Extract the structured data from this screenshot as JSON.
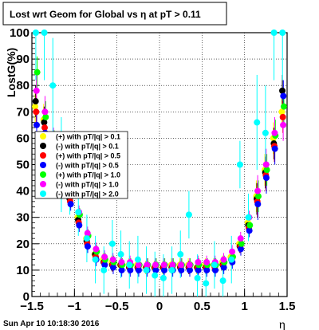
{
  "window": {
    "title": "Lost wrt Geom for Global vs   η at pT > 0.11",
    "footer_timestamp": "Sun Apr 10 10:18:30 2016"
  },
  "chart_data": {
    "type": "scatter",
    "title": "Lost wrt Geom for Global vs   η at pT > 0.11",
    "xlabel": "η",
    "ylabel": "LostG(%)",
    "xlim": [
      -1.5,
      1.5
    ],
    "ylim": [
      0,
      100
    ],
    "x_ticks": [
      "−1.5",
      "−1",
      "−0.5",
      "0",
      "0.5",
      "1",
      "1.5"
    ],
    "y_ticks": [
      "0",
      "10",
      "20",
      "30",
      "40",
      "50",
      "60",
      "70",
      "80",
      "90",
      "100"
    ],
    "grid": true,
    "legend_position": "middle-left",
    "series": [
      {
        "name": "(+) with pT/|q| > 0.1",
        "color": "#ffff00",
        "marker": "circle",
        "x": [
          -1.45,
          -1.35,
          -1.25,
          -1.15,
          -1.05,
          -0.95,
          -0.85,
          -0.75,
          -0.65,
          -0.55,
          -0.45,
          -0.35,
          -0.25,
          -0.15,
          -0.05,
          0.05,
          0.15,
          0.25,
          0.35,
          0.45,
          0.55,
          0.65,
          0.75,
          0.85,
          0.95,
          1.05,
          1.15,
          1.25,
          1.35,
          1.45
        ],
        "y": [
          72,
          67,
          55,
          47,
          38,
          30,
          22,
          16,
          14,
          13,
          12,
          12,
          12,
          11,
          11,
          11,
          12,
          12,
          12,
          11,
          12,
          12,
          13,
          15,
          20,
          28,
          38,
          48,
          60,
          70
        ]
      },
      {
        "name": "(-) with pT/|q| > 0.1",
        "color": "#000000",
        "marker": "circle",
        "x": [
          -1.45,
          -1.35,
          -1.25,
          -1.15,
          -1.05,
          -0.95,
          -0.85,
          -0.75,
          -0.65,
          -0.55,
          -0.45,
          -0.35,
          -0.25,
          -0.15,
          -0.05,
          0.05,
          0.15,
          0.25,
          0.35,
          0.45,
          0.55,
          0.65,
          0.75,
          0.85,
          0.95,
          1.05,
          1.15,
          1.25,
          1.35,
          1.45
        ],
        "y": [
          74,
          66,
          56,
          46,
          37,
          29,
          21,
          16,
          13,
          12,
          12,
          11,
          11,
          11,
          11,
          11,
          11,
          11,
          11,
          11,
          11,
          12,
          12,
          14,
          19,
          27,
          37,
          47,
          58,
          78
        ]
      },
      {
        "name": "(+) with pT/|q| > 0.5",
        "color": "#ff0000",
        "marker": "circle",
        "x": [
          -1.45,
          -1.35,
          -1.25,
          -1.15,
          -1.05,
          -0.95,
          -0.85,
          -0.75,
          -0.65,
          -0.55,
          -0.45,
          -0.35,
          -0.25,
          -0.15,
          -0.05,
          0.05,
          0.15,
          0.25,
          0.35,
          0.45,
          0.55,
          0.65,
          0.75,
          0.85,
          0.95,
          1.05,
          1.15,
          1.25,
          1.35,
          1.45
        ],
        "y": [
          70,
          64,
          54,
          45,
          36,
          28,
          20,
          15,
          13,
          12,
          12,
          11,
          11,
          11,
          11,
          11,
          11,
          11,
          11,
          11,
          11,
          11,
          12,
          14,
          19,
          26,
          36,
          46,
          57,
          68
        ]
      },
      {
        "name": "(-) with pT/|q| > 0.5",
        "color": "#0000ff",
        "marker": "circle",
        "x": [
          -1.45,
          -1.35,
          -1.25,
          -1.15,
          -1.05,
          -0.95,
          -0.85,
          -0.75,
          -0.65,
          -0.55,
          -0.45,
          -0.35,
          -0.25,
          -0.15,
          -0.05,
          0.05,
          0.15,
          0.25,
          0.35,
          0.45,
          0.55,
          0.65,
          0.75,
          0.85,
          0.95,
          1.05,
          1.15,
          1.25,
          1.35,
          1.45
        ],
        "y": [
          65,
          62,
          52,
          44,
          35,
          27,
          19,
          14,
          12,
          11,
          10,
          10,
          10,
          10,
          10,
          10,
          10,
          10,
          10,
          10,
          10,
          10,
          11,
          13,
          18,
          25,
          35,
          45,
          56,
          76
        ]
      },
      {
        "name": "(+) with pT/|q| > 1.0",
        "color": "#00ff00",
        "marker": "circle",
        "x": [
          -1.45,
          -1.35,
          -1.25,
          -1.15,
          -1.05,
          -0.95,
          -0.85,
          -0.75,
          -0.65,
          -0.55,
          -0.45,
          -0.35,
          -0.25,
          -0.15,
          -0.05,
          0.05,
          0.15,
          0.25,
          0.35,
          0.45,
          0.55,
          0.65,
          0.75,
          0.85,
          0.95,
          1.05,
          1.15,
          1.25,
          1.35,
          1.45
        ],
        "y": [
          85,
          68,
          57,
          48,
          39,
          31,
          23,
          17,
          14,
          13,
          12,
          12,
          12,
          12,
          12,
          12,
          12,
          12,
          12,
          12,
          12,
          12,
          13,
          15,
          20,
          27,
          38,
          48,
          61,
          72
        ]
      },
      {
        "name": "(-) with pT/|q| > 1.0",
        "color": "#ff00ff",
        "marker": "circle",
        "x": [
          -1.45,
          -1.35,
          -1.25,
          -1.15,
          -1.05,
          -0.95,
          -0.85,
          -0.75,
          -0.65,
          -0.55,
          -0.45,
          -0.35,
          -0.25,
          -0.15,
          -0.05,
          0.05,
          0.15,
          0.25,
          0.35,
          0.45,
          0.55,
          0.65,
          0.75,
          0.85,
          0.95,
          1.05,
          1.15,
          1.25,
          1.35,
          1.45
        ],
        "y": [
          78,
          70,
          58,
          49,
          40,
          32,
          24,
          18,
          15,
          14,
          13,
          13,
          12,
          12,
          12,
          12,
          12,
          12,
          12,
          13,
          13,
          13,
          14,
          17,
          22,
          30,
          40,
          50,
          62,
          65
        ]
      },
      {
        "name": "(-) with pT/|q| > 2.0",
        "color": "#00ffff",
        "marker": "circle",
        "x": [
          -1.45,
          -1.35,
          -1.25,
          -1.15,
          -1.05,
          -0.95,
          -0.85,
          -0.75,
          -0.65,
          -0.55,
          -0.45,
          -0.35,
          -0.25,
          -0.15,
          -0.05,
          0.05,
          0.15,
          0.25,
          0.35,
          0.45,
          0.55,
          0.65,
          0.75,
          0.85,
          0.95,
          1.05,
          1.15,
          1.25,
          1.35,
          1.45
        ],
        "y": [
          100,
          100,
          80,
          50,
          40,
          32,
          22,
          14,
          10,
          20,
          16,
          12,
          14,
          10,
          8,
          7,
          10,
          16,
          31,
          7,
          5,
          12,
          6,
          14,
          50,
          30,
          66,
          62,
          100,
          100
        ]
      }
    ]
  }
}
